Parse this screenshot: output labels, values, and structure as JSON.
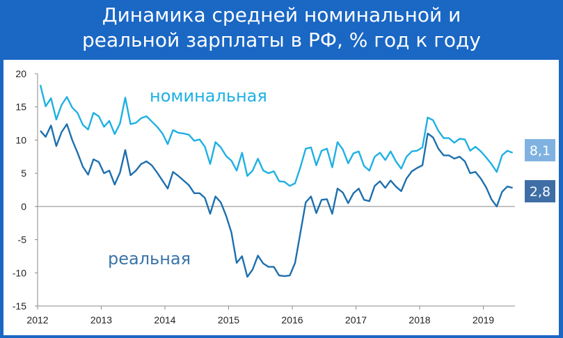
{
  "header": {
    "title_line1": "Динамика средней номинальной и",
    "title_line2": "реальной зарплаты в РФ, % год к году"
  },
  "colors": {
    "header_bg": "#1a67c4",
    "nominal": "#1eb0e2",
    "real": "#1d6fae",
    "nominal_badge": "#7fb2e0",
    "real_badge": "#3f6ea6",
    "real_text": "#3a74a8"
  },
  "chart_data": {
    "type": "line",
    "title": "Динамика средней номинальной и реальной зарплаты в РФ, % год к году",
    "xlabel": "",
    "ylabel": "",
    "ylim": [
      -15,
      20
    ],
    "yticks": [
      "20",
      "15",
      "10",
      "5",
      "0",
      "-5",
      "-10",
      "-15"
    ],
    "xticks": [
      "2012",
      "2013",
      "2014",
      "2015",
      "2016",
      "2017",
      "2018",
      "2019"
    ],
    "x_start": "2012-01",
    "x_end": "2019-05",
    "grid": false,
    "series": [
      {
        "name": "номинальная",
        "end_label": "8,1",
        "values": [
          18.3,
          15.1,
          16.3,
          13.1,
          15.3,
          16.5,
          14.9,
          14.1,
          12.3,
          11.6,
          14.1,
          13.6,
          12.0,
          12.9,
          10.9,
          12.5,
          16.4,
          12.4,
          12.6,
          13.3,
          13.6,
          12.8,
          12.0,
          11.0,
          9.4,
          11.5,
          11.1,
          11.0,
          10.8,
          9.9,
          10.1,
          9.0,
          6.4,
          9.7,
          8.9,
          7.6,
          6.9,
          5.4,
          8.1,
          4.6,
          5.4,
          7.2,
          5.4,
          5.0,
          5.3,
          3.8,
          3.7,
          3.1,
          3.5,
          5.9,
          8.7,
          8.9,
          6.2,
          8.4,
          8.7,
          5.9,
          9.7,
          8.6,
          6.5,
          8.0,
          8.3,
          6.1,
          5.4,
          7.5,
          8.1,
          7.0,
          8.3,
          6.8,
          5.7,
          7.5,
          8.3,
          8.4,
          8.9,
          13.4,
          13.0,
          11.4,
          10.3,
          10.3,
          9.6,
          10.2,
          10.1,
          8.4,
          9.0,
          8.3,
          7.4,
          6.4,
          5.2,
          7.7,
          8.4,
          8.1
        ]
      },
      {
        "name": "реальная",
        "end_label": "2,8",
        "values": [
          11.4,
          10.5,
          12.2,
          9.1,
          11.2,
          12.4,
          10.0,
          8.1,
          6.0,
          4.8,
          7.1,
          6.7,
          5.0,
          5.4,
          3.3,
          5.1,
          8.5,
          4.7,
          5.4,
          6.4,
          6.8,
          6.2,
          5.1,
          3.9,
          2.7,
          5.2,
          4.6,
          3.9,
          3.2,
          2.0,
          2.0,
          1.3,
          -1.1,
          1.5,
          0.6,
          -1.4,
          -3.9,
          -8.5,
          -7.5,
          -10.6,
          -9.5,
          -7.4,
          -8.6,
          -9.1,
          -9.1,
          -10.4,
          -10.5,
          -10.4,
          -8.5,
          -4.0,
          0.6,
          1.5,
          -1.0,
          1.0,
          1.1,
          -1.1,
          2.7,
          2.1,
          0.5,
          2.0,
          2.7,
          1.0,
          0.8,
          3.1,
          3.8,
          2.8,
          3.9,
          3.0,
          2.3,
          4.2,
          5.3,
          5.8,
          6.2,
          11.0,
          10.4,
          8.7,
          7.7,
          7.7,
          7.2,
          7.5,
          6.8,
          5.0,
          5.2,
          4.2,
          2.9,
          1.1,
          0.0,
          2.2,
          3.0,
          2.8
        ]
      }
    ]
  }
}
